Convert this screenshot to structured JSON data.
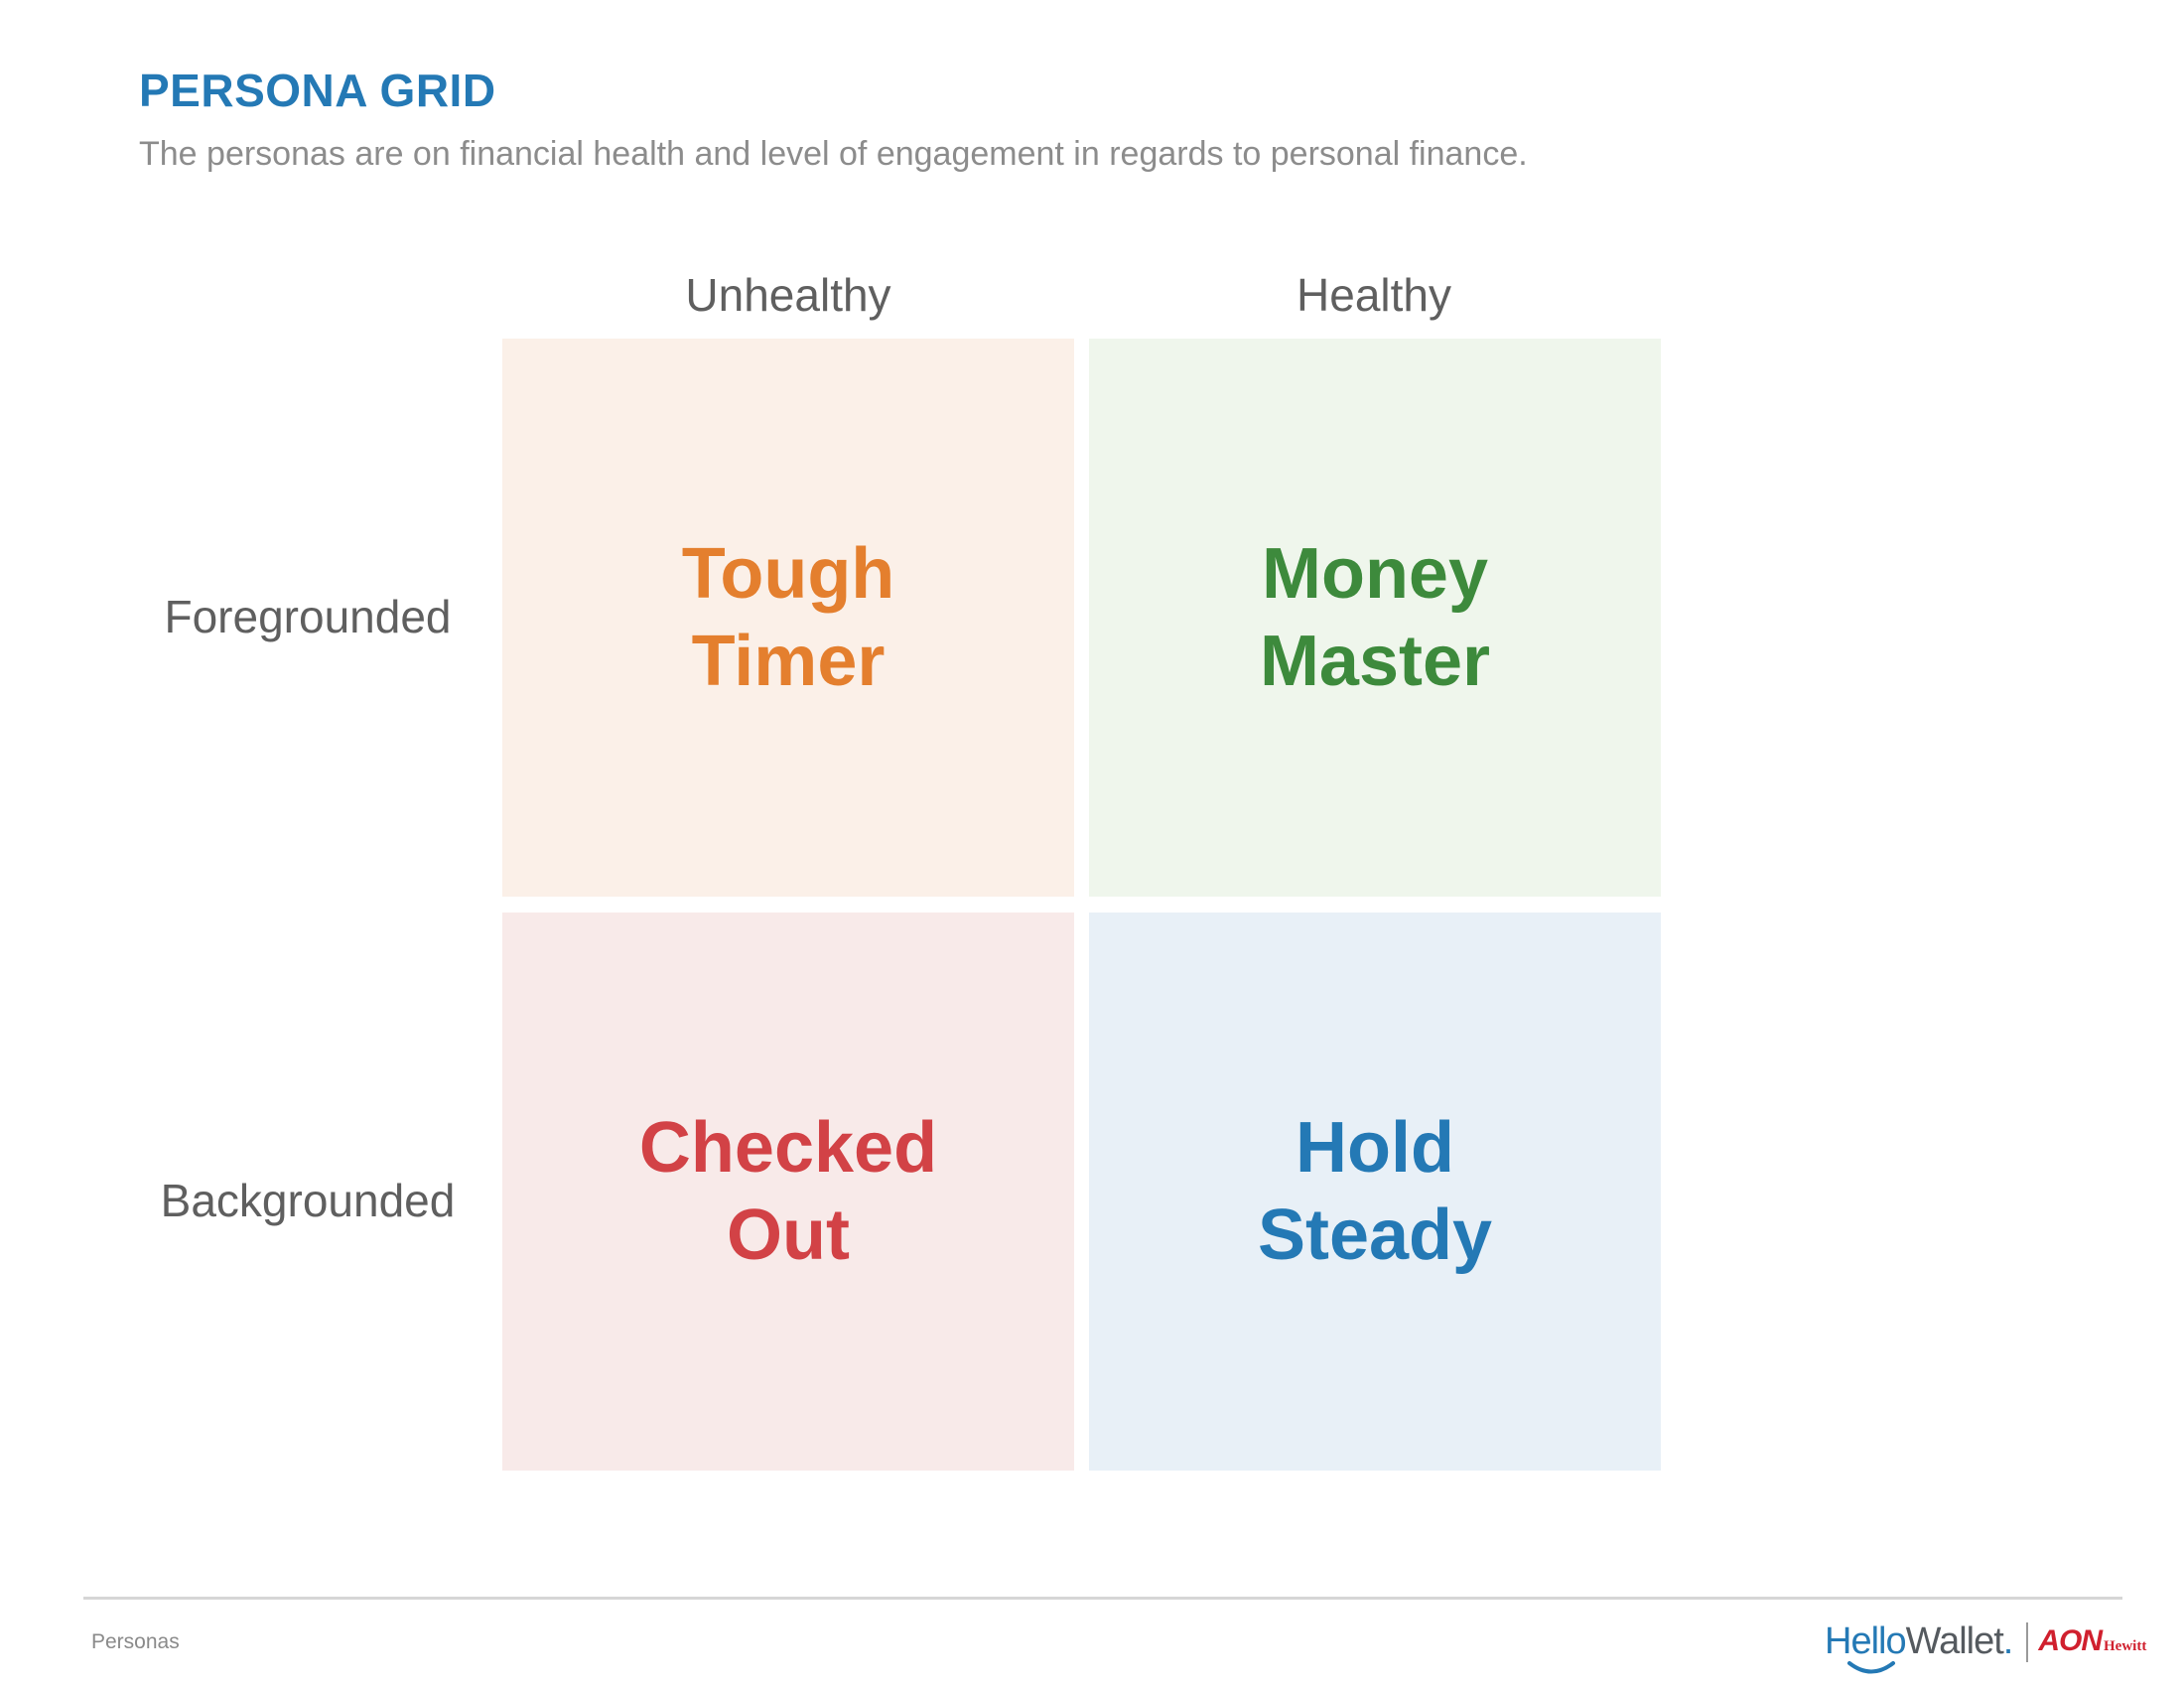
{
  "header": {
    "title": "PERSONA GRID",
    "subtitle": "The personas are on financial health and level of engagement in regards to personal finance."
  },
  "grid": {
    "columns": [
      "Unhealthy",
      "Healthy"
    ],
    "rows": [
      "Foregrounded",
      "Backgrounded"
    ],
    "cells": [
      {
        "lines": [
          "Tough",
          "Timer"
        ],
        "color": "#e47f2e",
        "background": "#fbf0e8"
      },
      {
        "lines": [
          "Money",
          "Master"
        ],
        "color": "#3d8a3c",
        "background": "#eff6ec"
      },
      {
        "lines": [
          "Checked",
          "Out"
        ],
        "color": "#d24246",
        "background": "#f8eae9"
      },
      {
        "lines": [
          "Hold",
          "Steady"
        ],
        "color": "#2479b5",
        "background": "#e8f0f7"
      }
    ]
  },
  "footer": {
    "label": "Personas",
    "logo_hello": "Hello",
    "logo_wallet": "Wallet",
    "logo_dot": ".",
    "logo_aon": "AON",
    "logo_hewitt": "Hewitt"
  },
  "colors": {
    "title": "#2479b5",
    "axis_label": "#5f5f5f",
    "subtitle": "#8c8c8c"
  }
}
